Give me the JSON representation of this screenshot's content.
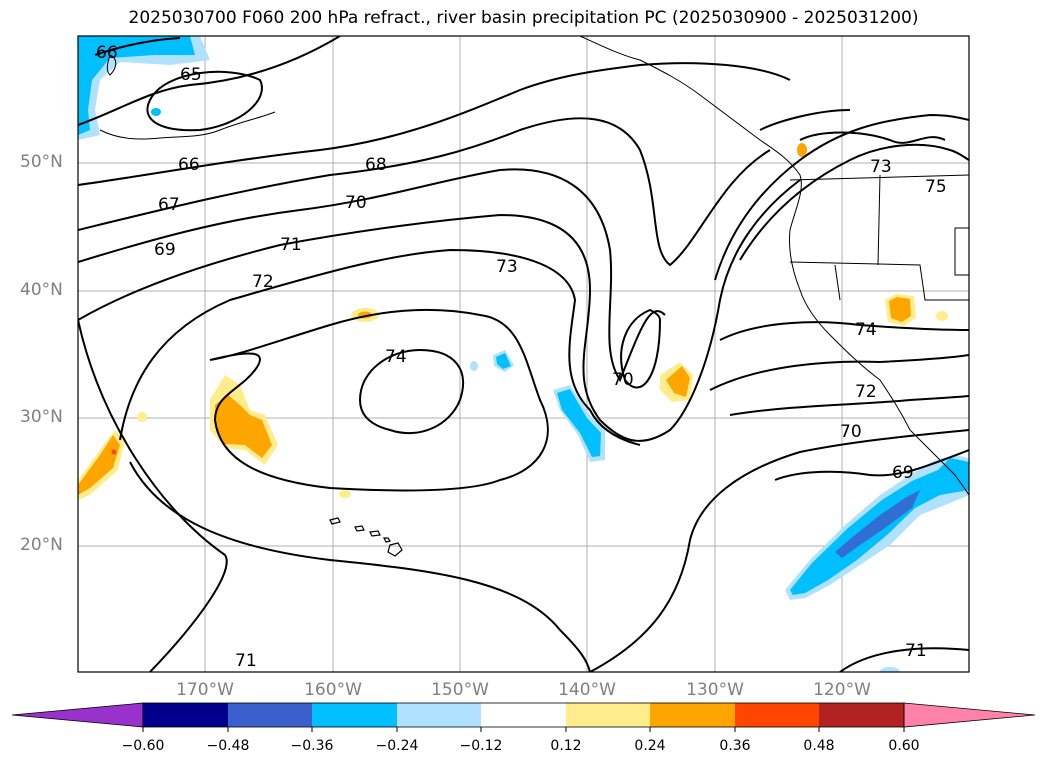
{
  "title": "2025030700 F060 200 hPa refract., river basin precipitation PC (2025030900 - 2025031200)",
  "map": {
    "lat_labels": [
      "50°N",
      "40°N",
      "30°N",
      "20°N"
    ],
    "lon_labels": [
      "170°W",
      "160°W",
      "150°W",
      "140°W",
      "130°W",
      "120°W"
    ],
    "contour_labels": [
      "66",
      "65",
      "66",
      "67",
      "68",
      "69",
      "70",
      "71",
      "72",
      "73",
      "74",
      "70",
      "73",
      "75",
      "74",
      "72",
      "70",
      "69",
      "71",
      "71"
    ],
    "grid": true,
    "land_line_color": "#000000",
    "contour_color": "#000000"
  },
  "colorbar": {
    "ticks": [
      "−0.60",
      "−0.48",
      "−0.36",
      "−0.24",
      "−0.12",
      "0.12",
      "0.24",
      "0.36",
      "0.48",
      "0.60"
    ],
    "colors": [
      "#9932cc",
      "#00008b",
      "#3a5fcd",
      "#00bfff",
      "#b0e2ff",
      "#ffffff",
      "#ffec8b",
      "#ffa500",
      "#ff4500",
      "#b22222",
      "#ff82ab"
    ],
    "extend": "both"
  }
}
